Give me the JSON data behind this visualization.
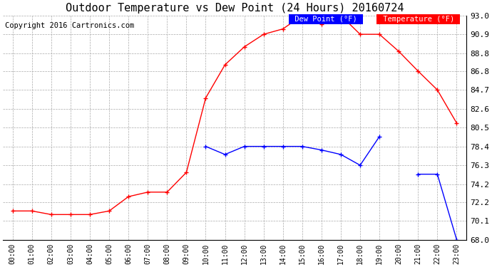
{
  "title": "Outdoor Temperature vs Dew Point (24 Hours) 20160724",
  "copyright": "Copyright 2016 Cartronics.com",
  "legend_dew": "Dew Point (°F)",
  "legend_temp": "Temperature (°F)",
  "hours": [
    "00:00",
    "01:00",
    "02:00",
    "03:00",
    "04:00",
    "05:00",
    "06:00",
    "07:00",
    "08:00",
    "09:00",
    "10:00",
    "11:00",
    "12:00",
    "13:00",
    "14:00",
    "15:00",
    "16:00",
    "17:00",
    "18:00",
    "19:00",
    "20:00",
    "21:00",
    "22:00",
    "23:00"
  ],
  "temperature": [
    71.2,
    71.2,
    70.8,
    70.8,
    70.8,
    71.2,
    72.8,
    73.3,
    73.3,
    75.5,
    83.8,
    87.5,
    89.5,
    90.9,
    91.5,
    93.0,
    92.0,
    93.0,
    90.9,
    90.9,
    89.0,
    86.8,
    84.7,
    81.0
  ],
  "dew_point": [
    null,
    null,
    null,
    null,
    null,
    null,
    null,
    null,
    null,
    null,
    78.4,
    77.5,
    78.4,
    78.4,
    78.4,
    78.4,
    78.0,
    77.5,
    76.3,
    79.5,
    null,
    75.3,
    75.3,
    68.0
  ],
  "ylim_min": 68.0,
  "ylim_max": 93.0,
  "yticks": [
    68.0,
    70.1,
    72.2,
    74.2,
    76.3,
    78.4,
    80.5,
    82.6,
    84.7,
    86.8,
    88.8,
    90.9,
    93.0
  ],
  "temp_color": "red",
  "dew_color": "blue",
  "bg_color": "white",
  "grid_color": "#aaaaaa",
  "title_fontsize": 11,
  "copyright_fontsize": 7.5
}
